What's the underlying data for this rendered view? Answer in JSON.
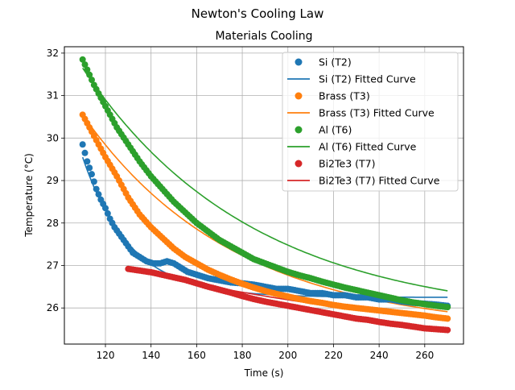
{
  "figure": {
    "suptitle": "Newton's Cooling Law"
  },
  "chart_data": {
    "type": "scatter",
    "title": "Materials Cooling",
    "xlabel": "Time (s)",
    "ylabel": "Temperature (°C)",
    "xlim": [
      102.0,
      277.0
    ],
    "ylim": [
      25.15,
      32.15
    ],
    "xticks": [
      120,
      140,
      160,
      180,
      200,
      220,
      240,
      260
    ],
    "yticks": [
      26,
      27,
      28,
      29,
      30,
      31,
      32
    ],
    "grid": true,
    "legend_position": "top-right",
    "series": [
      {
        "name": "Si (T2)",
        "fit_name": "Si (T2) Fitted Curve",
        "color": "#1f77b4",
        "fit": {
          "t0": 110,
          "T0": 29.55,
          "Tinf": 26.25,
          "k": 0.048
        },
        "points": [
          [
            110,
            29.85
          ],
          [
            112,
            29.45
          ],
          [
            114,
            29.15
          ],
          [
            116,
            28.8
          ],
          [
            118,
            28.55
          ],
          [
            120,
            28.35
          ],
          [
            122,
            28.1
          ],
          [
            124,
            27.9
          ],
          [
            126,
            27.75
          ],
          [
            128,
            27.6
          ],
          [
            130,
            27.45
          ],
          [
            132,
            27.3
          ],
          [
            135,
            27.2
          ],
          [
            138,
            27.1
          ],
          [
            141,
            27.05
          ],
          [
            144,
            27.05
          ],
          [
            147,
            27.1
          ],
          [
            150,
            27.05
          ],
          [
            153,
            26.95
          ],
          [
            156,
            26.85
          ],
          [
            159,
            26.8
          ],
          [
            162,
            26.75
          ],
          [
            165,
            26.7
          ],
          [
            170,
            26.65
          ],
          [
            175,
            26.6
          ],
          [
            180,
            26.58
          ],
          [
            185,
            26.55
          ],
          [
            190,
            26.5
          ],
          [
            195,
            26.45
          ],
          [
            200,
            26.45
          ],
          [
            205,
            26.4
          ],
          [
            210,
            26.35
          ],
          [
            215,
            26.35
          ],
          [
            220,
            26.3
          ],
          [
            225,
            26.3
          ],
          [
            230,
            26.25
          ],
          [
            235,
            26.25
          ],
          [
            240,
            26.2
          ],
          [
            245,
            26.2
          ],
          [
            250,
            26.15
          ],
          [
            255,
            26.12
          ],
          [
            260,
            26.1
          ],
          [
            265,
            26.08
          ],
          [
            270,
            26.05
          ]
        ]
      },
      {
        "name": "Brass (T3)",
        "fit_name": "Brass (T3) Fitted Curve",
        "color": "#ff7f0e",
        "fit": {
          "t0": 110,
          "T0": 30.55,
          "Tinf": 25.45,
          "k": 0.015
        },
        "points": [
          [
            110,
            30.55
          ],
          [
            115,
            30.05
          ],
          [
            120,
            29.55
          ],
          [
            125,
            29.1
          ],
          [
            130,
            28.6
          ],
          [
            135,
            28.2
          ],
          [
            140,
            27.9
          ],
          [
            145,
            27.65
          ],
          [
            150,
            27.4
          ],
          [
            155,
            27.2
          ],
          [
            160,
            27.05
          ],
          [
            165,
            26.9
          ],
          [
            170,
            26.78
          ],
          [
            175,
            26.67
          ],
          [
            180,
            26.57
          ],
          [
            185,
            26.48
          ],
          [
            190,
            26.4
          ],
          [
            195,
            26.33
          ],
          [
            200,
            26.27
          ],
          [
            205,
            26.21
          ],
          [
            210,
            26.16
          ],
          [
            215,
            26.12
          ],
          [
            220,
            26.07
          ],
          [
            225,
            26.03
          ],
          [
            230,
            26.0
          ],
          [
            235,
            25.97
          ],
          [
            240,
            25.94
          ],
          [
            245,
            25.91
          ],
          [
            250,
            25.88
          ],
          [
            255,
            25.85
          ],
          [
            260,
            25.82
          ],
          [
            265,
            25.78
          ],
          [
            270,
            25.75
          ]
        ]
      },
      {
        "name": "Al (T6)",
        "fit_name": "Al (T6) Fitted Curve",
        "color": "#2ca02c",
        "fit": {
          "t0": 110,
          "T0": 31.65,
          "Tinf": 25.72,
          "k": 0.0135
        },
        "points": [
          [
            110,
            31.85
          ],
          [
            115,
            31.25
          ],
          [
            120,
            30.75
          ],
          [
            125,
            30.25
          ],
          [
            130,
            29.85
          ],
          [
            135,
            29.45
          ],
          [
            140,
            29.1
          ],
          [
            145,
            28.8
          ],
          [
            150,
            28.5
          ],
          [
            155,
            28.25
          ],
          [
            160,
            28.0
          ],
          [
            165,
            27.8
          ],
          [
            170,
            27.6
          ],
          [
            175,
            27.45
          ],
          [
            180,
            27.3
          ],
          [
            185,
            27.15
          ],
          [
            190,
            27.05
          ],
          [
            195,
            26.95
          ],
          [
            200,
            26.85
          ],
          [
            205,
            26.77
          ],
          [
            210,
            26.7
          ],
          [
            215,
            26.62
          ],
          [
            220,
            26.55
          ],
          [
            225,
            26.48
          ],
          [
            230,
            26.42
          ],
          [
            235,
            26.36
          ],
          [
            240,
            26.3
          ],
          [
            245,
            26.24
          ],
          [
            250,
            26.18
          ],
          [
            255,
            26.13
          ],
          [
            260,
            26.09
          ],
          [
            265,
            26.05
          ],
          [
            270,
            26.02
          ]
        ]
      },
      {
        "name": "Bi2Te3 (T7)",
        "fit_name": "Bi2Te3 (T7) Fitted Curve",
        "color": "#d62728",
        "fit": {
          "t0": 130,
          "T0": 26.92,
          "Tinf": 24.8,
          "k": 0.006
        },
        "points": [
          [
            130,
            26.92
          ],
          [
            135,
            26.88
          ],
          [
            140,
            26.84
          ],
          [
            145,
            26.78
          ],
          [
            150,
            26.72
          ],
          [
            155,
            26.66
          ],
          [
            160,
            26.58
          ],
          [
            165,
            26.5
          ],
          [
            170,
            26.43
          ],
          [
            175,
            26.36
          ],
          [
            180,
            26.28
          ],
          [
            185,
            26.21
          ],
          [
            190,
            26.15
          ],
          [
            195,
            26.1
          ],
          [
            200,
            26.05
          ],
          [
            205,
            26.0
          ],
          [
            210,
            25.95
          ],
          [
            215,
            25.9
          ],
          [
            220,
            25.85
          ],
          [
            225,
            25.8
          ],
          [
            230,
            25.75
          ],
          [
            235,
            25.72
          ],
          [
            240,
            25.67
          ],
          [
            245,
            25.63
          ],
          [
            250,
            25.6
          ],
          [
            255,
            25.56
          ],
          [
            260,
            25.52
          ],
          [
            265,
            25.5
          ],
          [
            270,
            25.48
          ]
        ]
      }
    ]
  }
}
